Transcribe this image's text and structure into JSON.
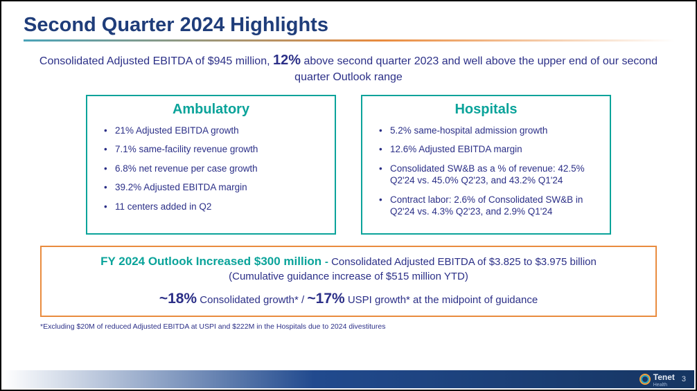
{
  "colors": {
    "brand_blue": "#1f3d7a",
    "body_indigo": "#2b2f87",
    "teal": "#0aa39a",
    "orange": "#e98b3e",
    "rule_gradient_from": "#4aa3b8",
    "rule_gradient_mid": "#e98b3e",
    "footer_gradient_mid": "#214a8e",
    "footer_gradient_end": "#163561"
  },
  "title": "Second Quarter 2024 Highlights",
  "subhead": {
    "pre": "Consolidated Adjusted EBITDA of $945 million, ",
    "pct": "12%",
    "post": " above second quarter 2023 and well above the upper end of our second quarter Outlook range"
  },
  "panels": {
    "ambulatory": {
      "title": "Ambulatory",
      "items": [
        "21% Adjusted EBITDA growth",
        "7.1% same-facility revenue growth",
        "6.8% net revenue per case growth",
        "39.2% Adjusted EBITDA margin",
        "11 centers added in Q2"
      ]
    },
    "hospitals": {
      "title": "Hospitals",
      "items": [
        "5.2% same-hospital admission growth",
        "12.6% Adjusted EBITDA margin",
        "Consolidated SW&B as a % of revenue: 42.5% Q2'24 vs. 45.0% Q2'23, and 43.2% Q1'24",
        "Contract labor: 2.6% of Consolidated SW&B in Q2'24 vs. 4.3% Q2'23, and 2.9% Q1'24"
      ]
    }
  },
  "outlook": {
    "lead": "FY 2024 Outlook Increased $300 million ",
    "dash": "- ",
    "rest": "Consolidated Adjusted EBITDA of $3.825 to $3.975 billion",
    "cum": "(Cumulative guidance increase of $515 million YTD)",
    "pct1": "~18%",
    "mid": " Consolidated growth* / ",
    "pct2": "~17%",
    "tail": " USPI growth* at the midpoint of guidance"
  },
  "footnote": "*Excluding $20M of reduced Adjusted EBITDA at USPI and $222M in the Hospitals due to 2024 divestitures",
  "footer": {
    "logo_text": "Tenet",
    "logo_sub": "Health",
    "page": "3"
  }
}
